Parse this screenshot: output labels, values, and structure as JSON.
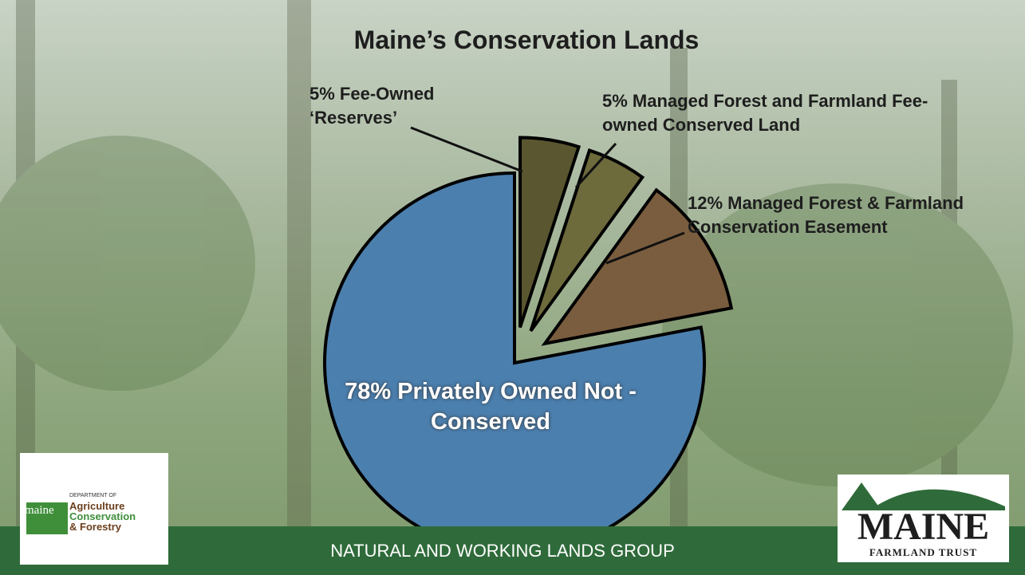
{
  "chart_data": {
    "type": "pie",
    "title": "Maine’s Conservation Lands",
    "categories": [
      "Fee-Owned ‘Reserves’",
      "Managed Forest and Farmland Fee-owned Conserved Land",
      "Managed Forest & Farmland Conservation Easement",
      "Privately Owned Not - Conserved"
    ],
    "values": [
      5,
      5,
      12,
      78
    ],
    "value_labels": [
      "5%",
      "5%",
      "12%",
      "78%"
    ],
    "colors": [
      "#5a5630",
      "#6d6a3c",
      "#7a5d3e",
      "#4b7fae"
    ]
  },
  "footer": {
    "text": "NATURAL AND WORKING LANDS GROUP"
  },
  "logos": {
    "left": {
      "mark": "maine",
      "lines": [
        "DEPARTMENT OF",
        "Agriculture",
        "Conservation",
        "& Forestry"
      ]
    },
    "right": {
      "name": "MAINE",
      "sub": "FARMLAND TRUST"
    }
  }
}
